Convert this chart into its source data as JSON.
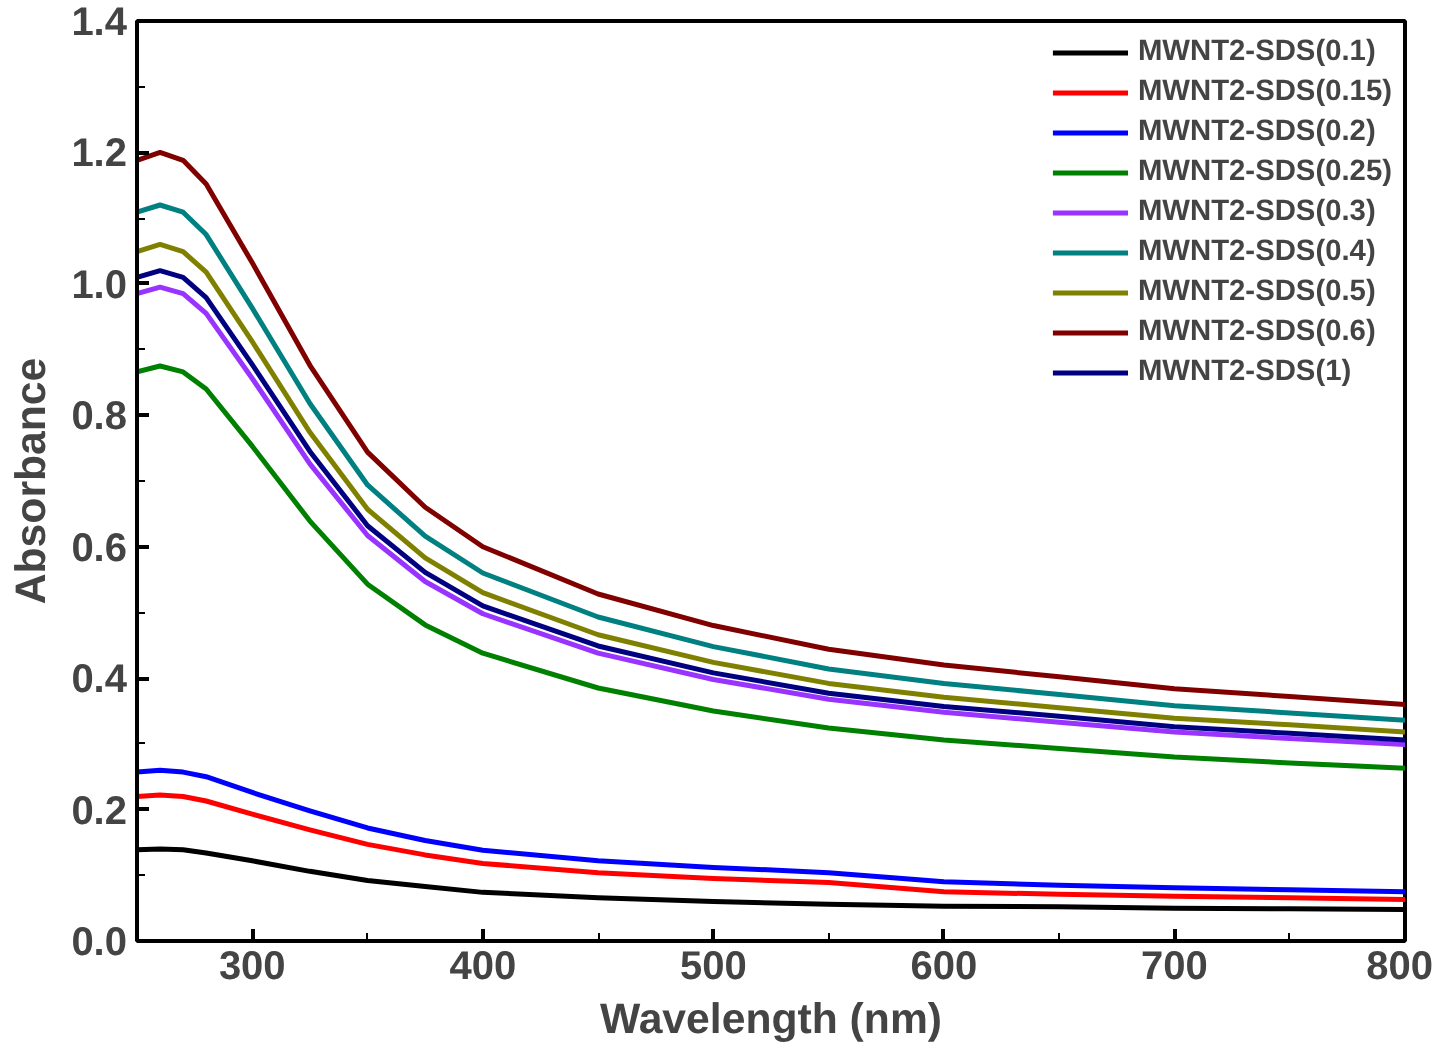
{
  "chart_data": {
    "type": "line",
    "xlabel": "Wavelength (nm)",
    "ylabel": "Absorbance",
    "xlim": [
      250,
      800
    ],
    "ylim": [
      0,
      1.4
    ],
    "xticks": [
      300,
      400,
      500,
      600,
      700,
      800
    ],
    "yticks": [
      {
        "value": 0,
        "label": "0.0"
      },
      {
        "value": 0.2,
        "label": "0.2"
      },
      {
        "value": 0.4,
        "label": "0.4"
      },
      {
        "value": 0.6,
        "label": "0.6"
      },
      {
        "value": 0.8,
        "label": "0.8"
      },
      {
        "value": 1.0,
        "label": "1.0"
      },
      {
        "value": 1.2,
        "label": "1.2"
      },
      {
        "value": 1.4,
        "label": "1.4"
      }
    ],
    "grid": false,
    "legend": "top right",
    "marker": "none",
    "line_style": "solid",
    "x": [
      250,
      260,
      270,
      280,
      300,
      325,
      350,
      375,
      400,
      450,
      500,
      550,
      600,
      650,
      700,
      750,
      800
    ],
    "series": [
      {
        "name": "MWNT2-SDS(0.1)",
        "color": "#000000",
        "values": [
          0.139,
          0.14,
          0.139,
          0.134,
          0.122,
          0.106,
          0.092,
          0.083,
          0.074,
          0.066,
          0.06,
          0.056,
          0.053,
          0.052,
          0.05,
          0.049,
          0.048
        ]
      },
      {
        "name": "MWNT2-SDS(0.15)",
        "color": "#ff0000",
        "values": [
          0.22,
          0.222,
          0.22,
          0.213,
          0.193,
          0.169,
          0.147,
          0.131,
          0.118,
          0.104,
          0.095,
          0.089,
          0.075,
          0.071,
          0.068,
          0.066,
          0.063
        ]
      },
      {
        "name": "MWNT2-SDS(0.2)",
        "color": "#0000ff",
        "values": [
          0.257,
          0.26,
          0.257,
          0.25,
          0.226,
          0.198,
          0.172,
          0.153,
          0.138,
          0.122,
          0.112,
          0.104,
          0.09,
          0.085,
          0.081,
          0.078,
          0.075
        ]
      },
      {
        "name": "MWNT2-SDS(0.25)",
        "color": "#008000",
        "values": [
          0.866,
          0.875,
          0.866,
          0.84,
          0.753,
          0.639,
          0.543,
          0.481,
          0.438,
          0.385,
          0.35,
          0.324,
          0.306,
          0.293,
          0.28,
          0.271,
          0.263
        ]
      },
      {
        "name": "MWNT2-SDS(0.3)",
        "color": "#9933ff",
        "values": [
          0.985,
          0.995,
          0.985,
          0.955,
          0.856,
          0.726,
          0.617,
          0.547,
          0.498,
          0.438,
          0.398,
          0.368,
          0.348,
          0.333,
          0.318,
          0.308,
          0.299
        ]
      },
      {
        "name": "MWNT2-SDS(0.4)",
        "color": "#008080",
        "values": [
          1.109,
          1.12,
          1.109,
          1.075,
          0.963,
          0.818,
          0.694,
          0.616,
          0.56,
          0.493,
          0.448,
          0.414,
          0.392,
          0.375,
          0.358,
          0.347,
          0.336
        ]
      },
      {
        "name": "MWNT2-SDS(0.5)",
        "color": "#808000",
        "values": [
          1.049,
          1.06,
          1.049,
          1.018,
          0.912,
          0.774,
          0.657,
          0.583,
          0.53,
          0.466,
          0.424,
          0.392,
          0.371,
          0.355,
          0.339,
          0.329,
          0.318
        ]
      },
      {
        "name": "MWNT2-SDS(0.6)",
        "color": "#800000",
        "values": [
          1.188,
          1.2,
          1.188,
          1.152,
          1.032,
          0.876,
          0.744,
          0.66,
          0.6,
          0.528,
          0.48,
          0.444,
          0.42,
          0.402,
          0.384,
          0.372,
          0.36
        ]
      },
      {
        "name": "MWNT2-SDS(1)",
        "color": "#000080",
        "values": [
          1.01,
          1.02,
          1.01,
          0.979,
          0.877,
          0.745,
          0.632,
          0.561,
          0.51,
          0.449,
          0.408,
          0.377,
          0.357,
          0.342,
          0.326,
          0.316,
          0.306
        ]
      }
    ]
  }
}
